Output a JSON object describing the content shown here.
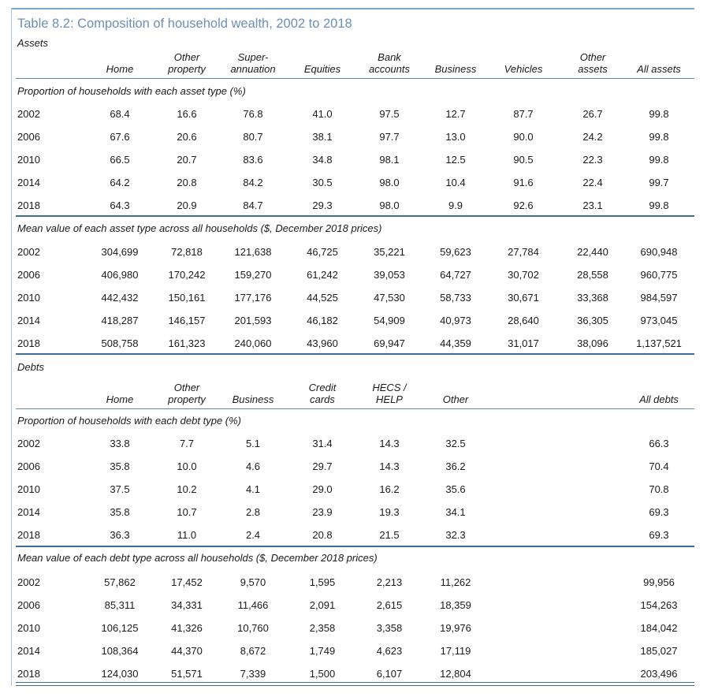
{
  "title": "Table 8.2: Composition of household wealth, 2002 to 2018",
  "assets": {
    "label": "Assets",
    "headers": [
      [
        "Home"
      ],
      [
        "Other",
        "property"
      ],
      [
        "Super-",
        "annuation"
      ],
      [
        "Equities"
      ],
      [
        "Bank",
        "accounts"
      ],
      [
        "Business"
      ],
      [
        "Vehicles"
      ],
      [
        "Other",
        "assets"
      ],
      [
        "All assets"
      ]
    ],
    "proportion": {
      "label": "Proportion of households with each asset type (%)",
      "rows": [
        {
          "year": "2002",
          "values": [
            "68.4",
            "16.6",
            "76.8",
            "41.0",
            "97.5",
            "12.7",
            "87.7",
            "26.7",
            "99.8"
          ]
        },
        {
          "year": "2006",
          "values": [
            "67.6",
            "20.6",
            "80.7",
            "38.1",
            "97.7",
            "13.0",
            "90.0",
            "24.2",
            "99.8"
          ]
        },
        {
          "year": "2010",
          "values": [
            "66.5",
            "20.7",
            "83.6",
            "34.8",
            "98.1",
            "12.5",
            "90.5",
            "22.3",
            "99.8"
          ]
        },
        {
          "year": "2014",
          "values": [
            "64.2",
            "20.8",
            "84.2",
            "30.5",
            "98.0",
            "10.4",
            "91.6",
            "22.4",
            "99.7"
          ]
        },
        {
          "year": "2018",
          "values": [
            "64.3",
            "20.9",
            "84.7",
            "29.3",
            "98.0",
            "9.9",
            "92.6",
            "23.1",
            "99.8"
          ]
        }
      ]
    },
    "mean": {
      "label": "Mean value of each asset type across all households ($, December 2018 prices)",
      "rows": [
        {
          "year": "2002",
          "values": [
            "304,699",
            "72,818",
            "121,638",
            "46,725",
            "35,221",
            "59,623",
            "27,784",
            "22,440",
            "690,948"
          ]
        },
        {
          "year": "2006",
          "values": [
            "406,980",
            "170,242",
            "159,270",
            "61,242",
            "39,053",
            "64,727",
            "30,702",
            "28,558",
            "960,775"
          ]
        },
        {
          "year": "2010",
          "values": [
            "442,432",
            "150,161",
            "177,176",
            "44,525",
            "47,530",
            "58,733",
            "30,671",
            "33,368",
            "984,597"
          ]
        },
        {
          "year": "2014",
          "values": [
            "418,287",
            "146,157",
            "201,593",
            "46,182",
            "54,909",
            "40,973",
            "28,640",
            "36,305",
            "973,045"
          ]
        },
        {
          "year": "2018",
          "values": [
            "508,758",
            "161,323",
            "240,060",
            "43,960",
            "69,947",
            "44,359",
            "31,017",
            "38,096",
            "1,137,521"
          ]
        }
      ]
    }
  },
  "debts": {
    "label": "Debts",
    "headers": [
      [
        "Home"
      ],
      [
        "Other",
        "property"
      ],
      [
        "Business"
      ],
      [
        "Credit",
        "cards"
      ],
      [
        "HECS /",
        "HELP"
      ],
      [
        "Other"
      ],
      [],
      [],
      [
        "All debts"
      ]
    ],
    "proportion": {
      "label": "Proportion of households with each debt type (%)",
      "rows": [
        {
          "year": "2002",
          "values": [
            "33.8",
            "7.7",
            "5.1",
            "31.4",
            "14.3",
            "32.5",
            "",
            "",
            "66.3"
          ]
        },
        {
          "year": "2006",
          "values": [
            "35.8",
            "10.0",
            "4.6",
            "29.7",
            "14.3",
            "36.2",
            "",
            "",
            "70.4"
          ]
        },
        {
          "year": "2010",
          "values": [
            "37.5",
            "10.2",
            "4.1",
            "29.0",
            "16.2",
            "35.6",
            "",
            "",
            "70.8"
          ]
        },
        {
          "year": "2014",
          "values": [
            "35.8",
            "10.7",
            "2.8",
            "23.9",
            "19.3",
            "34.1",
            "",
            "",
            "69.3"
          ]
        },
        {
          "year": "2018",
          "values": [
            "36.3",
            "11.0",
            "2.4",
            "20.8",
            "21.5",
            "32.3",
            "",
            "",
            "69.3"
          ]
        }
      ]
    },
    "mean": {
      "label": "Mean value of each debt type across all households ($, December 2018 prices)",
      "rows": [
        {
          "year": "2002",
          "values": [
            "57,862",
            "17,452",
            "9,570",
            "1,595",
            "2,213",
            "11,262",
            "",
            "",
            "99,956"
          ]
        },
        {
          "year": "2006",
          "values": [
            "85,311",
            "34,331",
            "11,466",
            "2,091",
            "2,615",
            "18,359",
            "",
            "",
            "154,263"
          ]
        },
        {
          "year": "2010",
          "values": [
            "106,125",
            "41,326",
            "10,760",
            "2,358",
            "3,358",
            "19,976",
            "",
            "",
            "184,042"
          ]
        },
        {
          "year": "2014",
          "values": [
            "108,364",
            "44,370",
            "8,672",
            "1,749",
            "4,623",
            "17,119",
            "",
            "",
            "185,027"
          ]
        },
        {
          "year": "2018",
          "values": [
            "124,030",
            "51,571",
            "7,339",
            "1,500",
            "6,107",
            "12,804",
            "",
            "",
            "203,496"
          ]
        }
      ]
    }
  }
}
